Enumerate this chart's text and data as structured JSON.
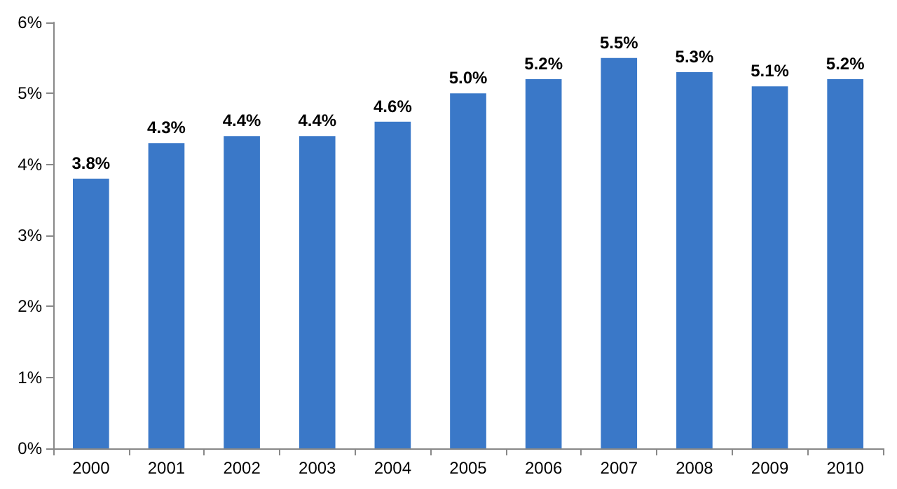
{
  "chart_data": {
    "type": "bar",
    "categories": [
      "2000",
      "2001",
      "2002",
      "2003",
      "2004",
      "2005",
      "2006",
      "2007",
      "2008",
      "2009",
      "2010"
    ],
    "values": [
      3.8,
      4.3,
      4.4,
      4.4,
      4.6,
      5.0,
      5.2,
      5.5,
      5.3,
      5.1,
      5.2
    ],
    "value_labels": [
      "3.8%",
      "4.3%",
      "4.4%",
      "4.4%",
      "4.6%",
      "5.0%",
      "5.2%",
      "5.5%",
      "5.3%",
      "5.1%",
      "5.2%"
    ],
    "color": "#3a78c8",
    "ylim": [
      0,
      6
    ],
    "yticks": [
      {
        "value": 0,
        "label": "0%"
      },
      {
        "value": 1,
        "label": "1%"
      },
      {
        "value": 2,
        "label": "2%"
      },
      {
        "value": 3,
        "label": "3%"
      },
      {
        "value": 4,
        "label": "4%"
      },
      {
        "value": 5,
        "label": "5%"
      },
      {
        "value": 6,
        "label": "6%"
      }
    ],
    "grid": false
  }
}
